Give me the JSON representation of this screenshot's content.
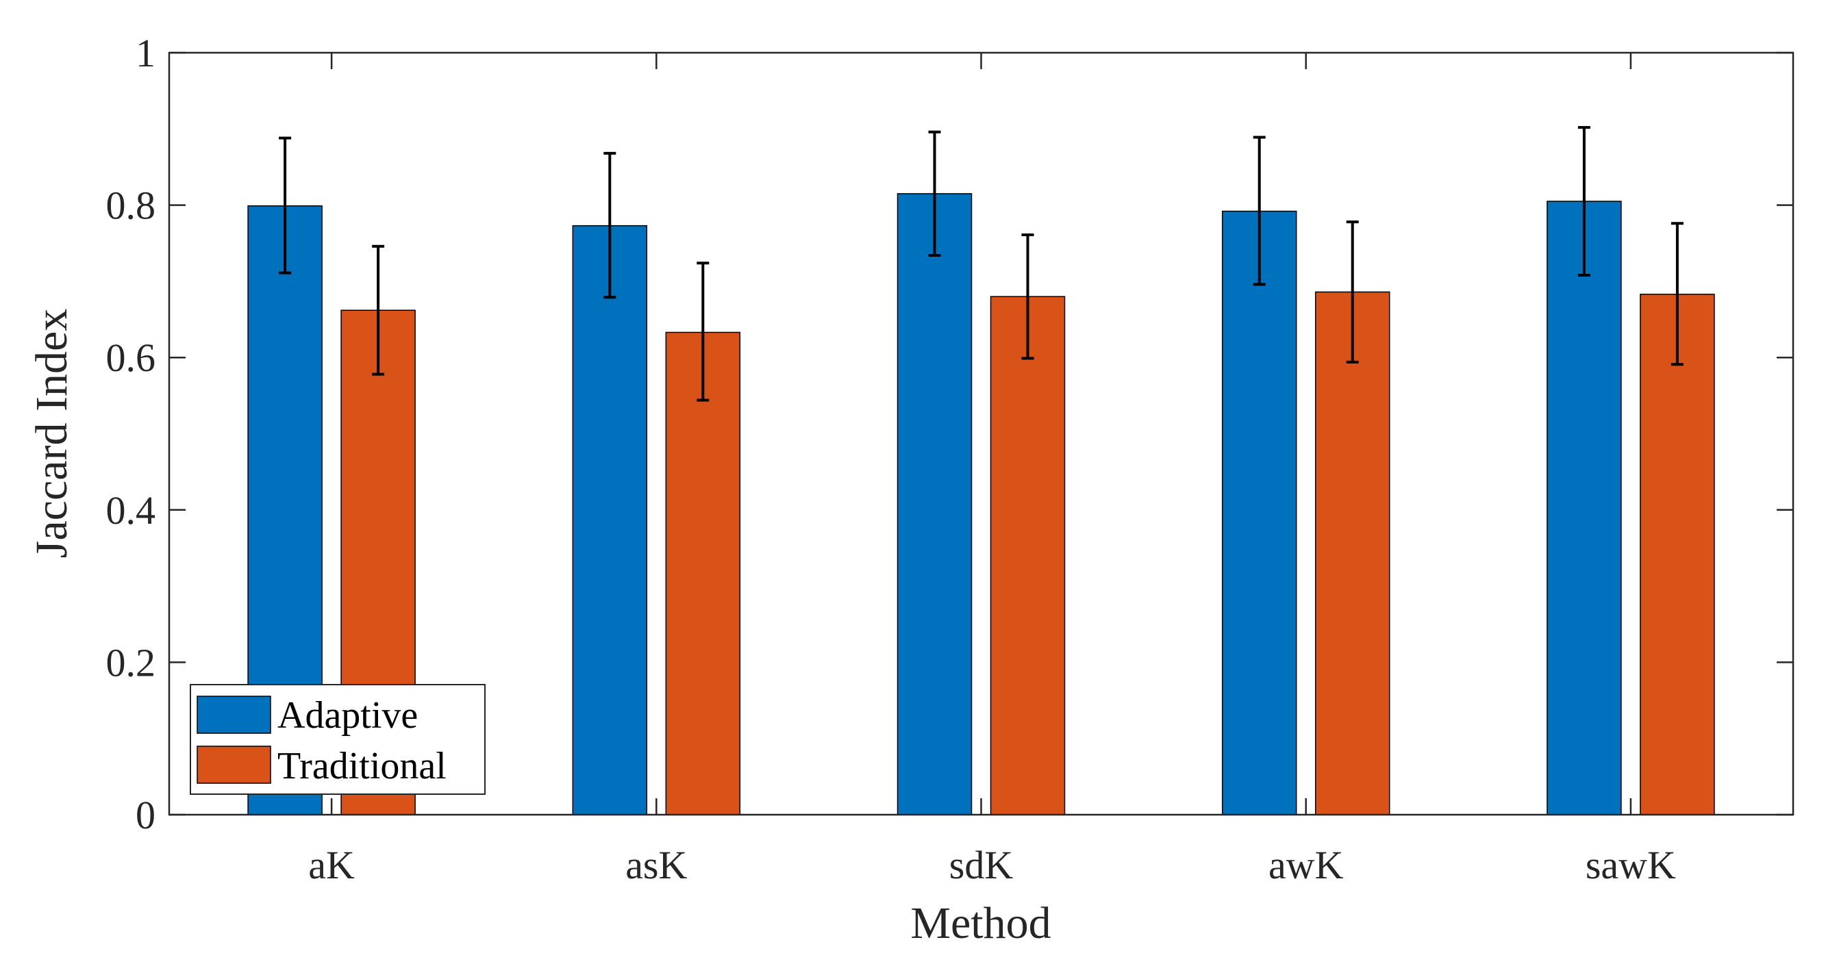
{
  "chart_data": {
    "type": "bar",
    "title": "",
    "xlabel": "Method",
    "ylabel": "Jaccard Index",
    "categories": [
      "aK",
      "asK",
      "sdK",
      "awK",
      "sawK"
    ],
    "ylim": [
      0,
      1
    ],
    "yticks": [
      0,
      0.2,
      0.4,
      0.6,
      0.8,
      1
    ],
    "ytick_labels": [
      "0",
      "0.2",
      "0.4",
      "0.6",
      "0.8",
      "1"
    ],
    "grid": false,
    "legend_position": "bottom-left",
    "series": [
      {
        "name": "Adaptive",
        "color": "#0072BD",
        "values": [
          0.799,
          0.773,
          0.815,
          0.792,
          0.805
        ],
        "error_low": [
          0.711,
          0.679,
          0.734,
          0.696,
          0.708
        ],
        "error_high": [
          0.888,
          0.868,
          0.896,
          0.889,
          0.902
        ]
      },
      {
        "name": "Traditional",
        "color": "#D95319",
        "values": [
          0.662,
          0.633,
          0.68,
          0.686,
          0.683
        ],
        "error_low": [
          0.578,
          0.544,
          0.599,
          0.594,
          0.591
        ],
        "error_high": [
          0.746,
          0.724,
          0.761,
          0.778,
          0.776
        ]
      }
    ]
  }
}
